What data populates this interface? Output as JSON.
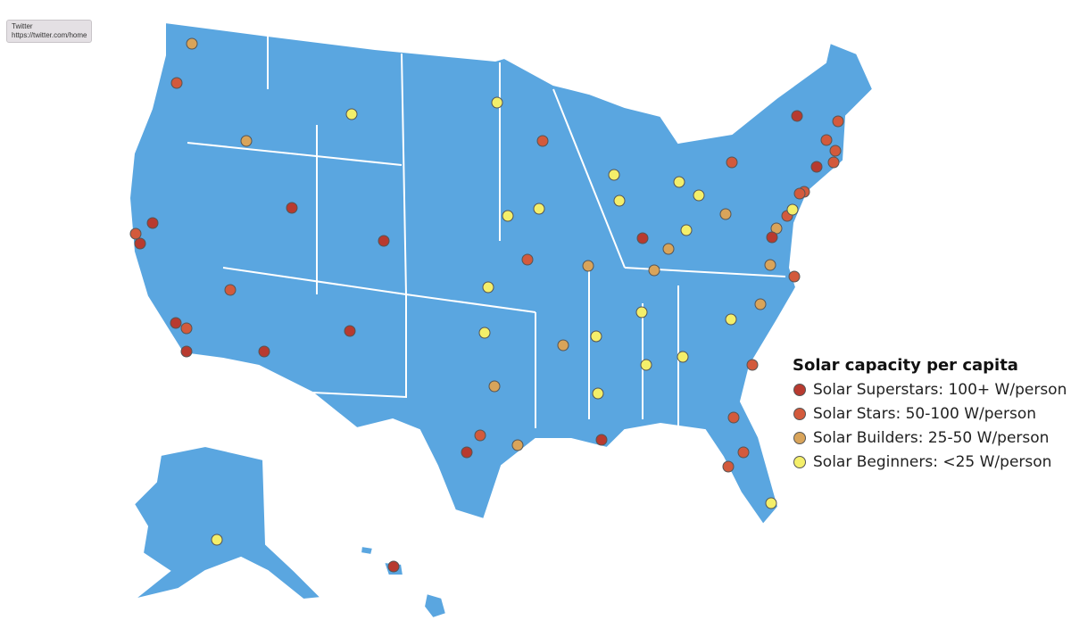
{
  "tooltip": {
    "title": "Twitter",
    "url": "https://twitter.com/home"
  },
  "legend": {
    "title": "Solar capacity per capita",
    "items": [
      {
        "label": "Solar Superstars: 100+ W/person",
        "color": "#b83a2f"
      },
      {
        "label": "Solar Stars: 50-100 W/person",
        "color": "#d35a3c"
      },
      {
        "label": "Solar Builders: 25-50 W/person",
        "color": "#d9a45a"
      },
      {
        "label": "Solar Beginners: <25 W/person",
        "color": "#f4ef6a"
      }
    ]
  }
}
